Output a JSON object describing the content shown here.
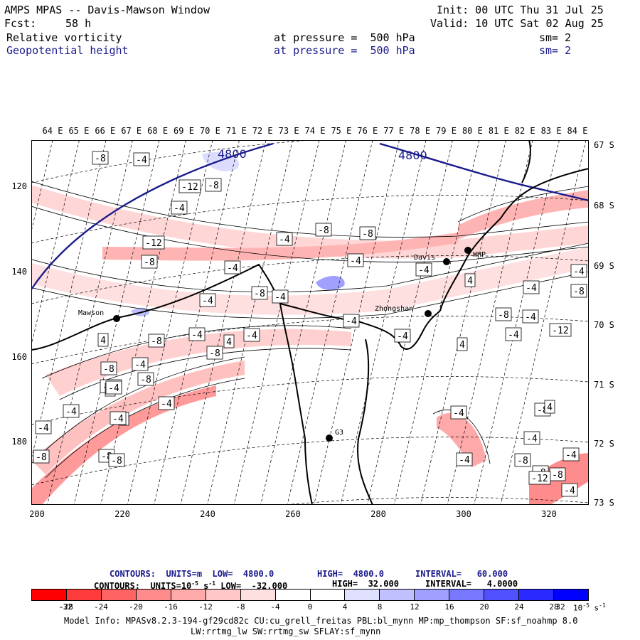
{
  "header": {
    "title": "AMPS MPAS -- Davis-Mawson Window",
    "init": "Init: 00 UTC Thu 31 Jul 25",
    "fcst_label": "Fcst:",
    "fcst_value": "58 h",
    "valid": "Valid: 10 UTC Sat 02 Aug 25",
    "field1": "Relative vorticity",
    "field1_level": "at pressure =  500 hPa",
    "field1_sm": "sm= 2",
    "field2": "Geopotential height",
    "field2_level": "at pressure =  500 hPa",
    "field2_sm": "sm= 2"
  },
  "map": {
    "lon_labels": [
      "64 E",
      "65 E",
      "66 E",
      "67 E",
      "68 E",
      "69 E",
      "70 E",
      "71 E",
      "72 E",
      "73 E",
      "74 E",
      "75 E",
      "76 E",
      "77 E",
      "78 E",
      "79 E",
      "80 E",
      "81 E",
      "82 E",
      "83 E",
      "84 E"
    ],
    "lat_labels": [
      "67 S",
      "68 S",
      "69 S",
      "70 S",
      "71 S",
      "72 S",
      "73 S"
    ],
    "y_ticks": [
      "120",
      "140",
      "160",
      "180"
    ],
    "x_ticks": [
      "200",
      "220",
      "240",
      "260",
      "280",
      "300",
      "320"
    ],
    "stations": [
      "Mawson",
      "Davis",
      "WHP",
      "Zhongshan",
      "G3"
    ],
    "height_contour_label": "4800",
    "vort_labels": [
      "-8",
      "-4",
      "-12",
      "-8",
      "-8",
      "-4",
      "-8",
      "-4",
      "-12",
      "-4",
      "-4",
      "-8",
      "-4",
      "-4",
      "-8",
      "-12",
      "-8",
      "4",
      "4",
      "-4",
      "4",
      "-4",
      "-4",
      "-8",
      "-4",
      "-4",
      "4",
      "-8",
      "-8",
      "-4",
      "-4",
      "-8",
      "-8",
      "-8",
      "-4",
      "-4",
      "-4",
      "-4",
      "-4",
      "-12",
      "-8",
      "-4",
      "-4",
      "-8",
      "4",
      "-4",
      "-8",
      "4",
      "4",
      "-8",
      "-4",
      "-4",
      "-4",
      "-8",
      "-12",
      "-4",
      "-4",
      "-8"
    ],
    "colors": {
      "height_contour": "#1a1a8c",
      "coast": "#000000"
    }
  },
  "contours": {
    "line1_title": "CONTOURS:",
    "line1_units": "UNITS=m",
    "line1_low": "LOW=  4800.0",
    "line1_high": "HIGH=  4800.0",
    "line1_interval": "INTERVAL=   60.000",
    "line2_title": "CONTOURS:",
    "line2_units": "UNITS=10",
    "line2_units_exp": "-5",
    "line2_units_suffix": "s",
    "line2_units_suffix_exp": "-1",
    "line2_low": "LOW=  -32.000",
    "line2_high": "HIGH=  32.000",
    "line2_interval": "INTERVAL=   4.0000"
  },
  "colorbar": {
    "colors": [
      "#ff0000",
      "#ff3c3c",
      "#ff6464",
      "#ff8c8c",
      "#ffaaaa",
      "#ffc8c8",
      "#ffe0e0",
      "#ffffff",
      "#ffffff",
      "#e0e0ff",
      "#c0c0ff",
      "#a0a0ff",
      "#7878ff",
      "#5050ff",
      "#2828ff",
      "#0000ff"
    ],
    "ticks": [
      "-32",
      "-28",
      "-24",
      "-20",
      "-16",
      "-12",
      "-8",
      "-4",
      "0",
      "4",
      "8",
      "12",
      "16",
      "20",
      "24",
      "28",
      "32"
    ],
    "unit": "10",
    "unit_exp": "-5",
    "unit_s": "s",
    "unit_s_exp": "-1"
  },
  "footer": {
    "line1": "Model Info: MPASv8.2.3-194-gf29cd82c CU:cu_grell_freitas PBL:bl_mynn MP:mp_thompson SF:sf_noahmp 8.0",
    "line2": "LW:rrtmg_lw SW:rrtmg_sw SFLAY:sf_mynn"
  }
}
